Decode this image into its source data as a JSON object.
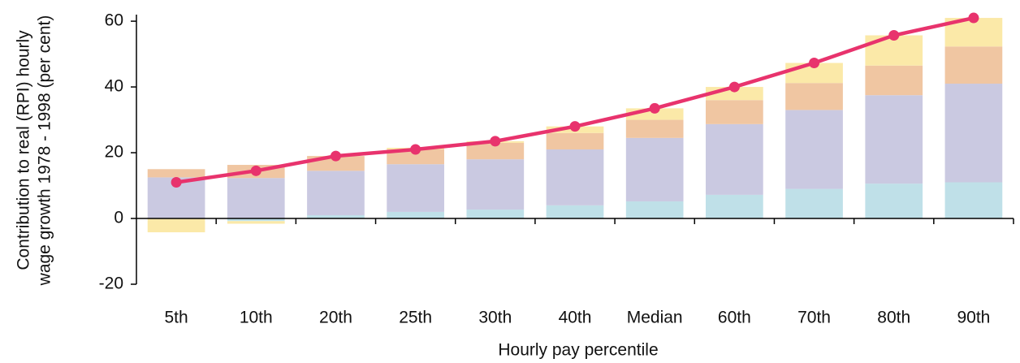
{
  "chart_data": {
    "type": "bar",
    "stacked": true,
    "x_label": "Hourly pay percentile",
    "y_label": [
      "Contribution to real (RPI) hourly",
      "wage growth 1978 - 1998 (per cent)"
    ],
    "categories": [
      "5th",
      "10th",
      "20th",
      "25th",
      "30th",
      "40th",
      "Median",
      "60th",
      "70th",
      "80th",
      "90th"
    ],
    "series": [
      {
        "type": "bar",
        "color": "#bfe0e8",
        "values": [
          0,
          -0.8,
          1,
          2,
          2.7,
          4,
          5.2,
          7.2,
          9,
          10.6,
          11
        ]
      },
      {
        "type": "bar",
        "color": "#cac9e1",
        "values": [
          12.5,
          12.3,
          13.5,
          14.5,
          15.3,
          17,
          19.3,
          21.5,
          24,
          26.9,
          30
        ]
      },
      {
        "type": "bar",
        "color": "#f0c6a2",
        "values": [
          2.5,
          4,
          4.5,
          4.5,
          5,
          5,
          5.5,
          7.3,
          8.2,
          9,
          11.3
        ]
      },
      {
        "type": "bar",
        "color": "#fbe9a8",
        "values": [
          -4.2,
          -0.8,
          0,
          0.5,
          0.5,
          2,
          3.5,
          4,
          6.1,
          9.2,
          8.7
        ]
      },
      {
        "type": "line",
        "color": "#e8336d",
        "values": [
          11,
          14.5,
          19,
          21,
          23.5,
          28,
          33.5,
          40,
          47.3,
          55.7,
          61
        ]
      }
    ],
    "ylim": [
      -20,
      62
    ],
    "yticks": [
      -20,
      0,
      20,
      40,
      60
    ]
  }
}
